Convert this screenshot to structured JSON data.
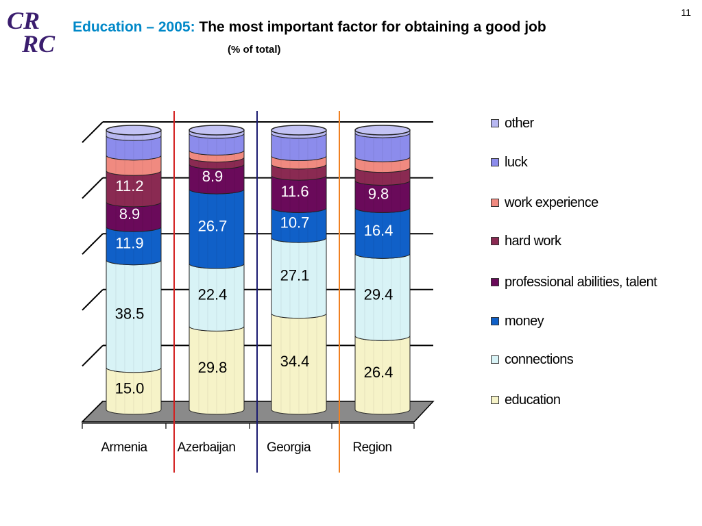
{
  "header": {
    "logo_line1": "CR",
    "logo_line2": "RC",
    "title_accent": "Education – 2005:",
    "title_main": "The most important factor for obtaining a good job",
    "subtitle": "(% of total)",
    "page_number": "11"
  },
  "colors": {
    "education": "#f6f3c8",
    "connections": "#d8f3f6",
    "money": "#1060c8",
    "professional_abilities": "#6a0a5a",
    "hard_work": "#8a2a52",
    "work_experience": "#f08a80",
    "luck": "#8c8cec",
    "other": "#b8b8f2",
    "floor": "#8a8a8a",
    "divider_1": "#d32020",
    "divider_2": "#1a1a70",
    "divider_3": "#f08020"
  },
  "chart_data": {
    "type": "bar",
    "stacked": true,
    "title": "",
    "xlabel": "",
    "ylabel": "",
    "ylim": [
      0,
      100
    ],
    "categories": [
      "Armenia",
      "Azerbaijan",
      "Georgia",
      "Region"
    ],
    "series": [
      {
        "name": "education",
        "key": "education",
        "values": [
          15.0,
          29.8,
          34.4,
          26.4
        ],
        "labels": [
          "15.0",
          "29.8",
          "34.4",
          "26.4"
        ]
      },
      {
        "name": "connections",
        "key": "connections",
        "values": [
          38.5,
          22.4,
          27.1,
          29.4
        ],
        "labels": [
          "38.5",
          "22.4",
          "27.1",
          "29.4"
        ]
      },
      {
        "name": "money",
        "key": "money",
        "values": [
          11.9,
          26.7,
          10.7,
          16.4
        ],
        "labels": [
          "11.9",
          "26.7",
          "10.7",
          "16.4"
        ]
      },
      {
        "name": "professional abilities, talent",
        "key": "professional_abilities",
        "values": [
          8.9,
          8.9,
          11.6,
          9.8
        ],
        "labels": [
          "8.9",
          "8.9",
          "11.6",
          "9.8"
        ]
      },
      {
        "name": "hard work",
        "key": "hard_work",
        "values": [
          11.2,
          2.5,
          4.0,
          4.6
        ],
        "labels": [
          "11.2",
          "",
          "",
          ""
        ]
      },
      {
        "name": "work experience",
        "key": "work_experience",
        "values": [
          5.5,
          2.5,
          3.0,
          3.8
        ],
        "labels": [
          "",
          "",
          "",
          ""
        ]
      },
      {
        "name": "luck",
        "key": "luck",
        "values": [
          7.0,
          6.0,
          8.0,
          8.6
        ],
        "labels": [
          "",
          "",
          "",
          ""
        ]
      },
      {
        "name": "other",
        "key": "other",
        "values": [
          2.0,
          1.2,
          1.2,
          1.0
        ],
        "labels": [
          "",
          "",
          "",
          ""
        ]
      }
    ],
    "legend_position": "right",
    "legend_order": [
      "other",
      "luck",
      "work_experience",
      "hard_work",
      "professional_abilities",
      "money",
      "connections",
      "education"
    ],
    "grid": true
  }
}
